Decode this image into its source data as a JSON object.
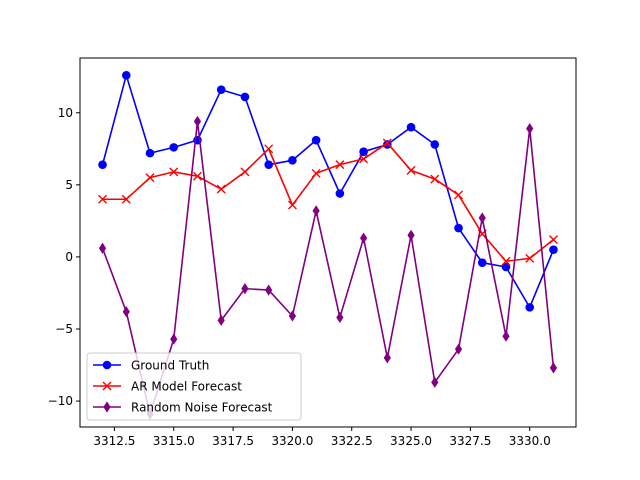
{
  "chart_data": {
    "type": "line",
    "title": "",
    "xlabel": "",
    "ylabel": "",
    "xlim": [
      3311.05,
      3331.95
    ],
    "ylim": [
      -11.8,
      13.8
    ],
    "x_ticks": [
      {
        "value": 3312.5,
        "label": "3312.5"
      },
      {
        "value": 3315.0,
        "label": "3315.0"
      },
      {
        "value": 3317.5,
        "label": "3317.5"
      },
      {
        "value": 3320.0,
        "label": "3320.0"
      },
      {
        "value": 3322.5,
        "label": "3322.5"
      },
      {
        "value": 3325.0,
        "label": "3325.0"
      },
      {
        "value": 3327.5,
        "label": "3327.5"
      },
      {
        "value": 3330.0,
        "label": "3330.0"
      }
    ],
    "y_ticks": [
      {
        "value": -10,
        "label": "−10"
      },
      {
        "value": -5,
        "label": "−5"
      },
      {
        "value": 0,
        "label": "0"
      },
      {
        "value": 5,
        "label": "5"
      },
      {
        "value": 10,
        "label": "10"
      }
    ],
    "grid": false,
    "legend_position": "lower-left",
    "x": [
      3312,
      3313,
      3314,
      3315,
      3316,
      3317,
      3318,
      3319,
      3320,
      3321,
      3322,
      3323,
      3324,
      3325,
      3326,
      3327,
      3328,
      3329,
      3330,
      3331
    ],
    "series": [
      {
        "name": "Ground Truth",
        "color": "#0000ff",
        "marker": "circle",
        "values": [
          6.4,
          12.6,
          7.2,
          7.6,
          8.1,
          11.6,
          11.1,
          6.4,
          6.7,
          8.1,
          4.4,
          7.3,
          7.8,
          9.0,
          7.8,
          2.0,
          -0.4,
          -0.7,
          -3.5,
          0.5
        ]
      },
      {
        "name": "AR Model Forecast",
        "color": "#ff0000",
        "marker": "x",
        "values": [
          4.0,
          4.0,
          5.5,
          5.9,
          5.6,
          4.7,
          5.9,
          7.5,
          3.6,
          5.8,
          6.4,
          6.8,
          7.9,
          6.0,
          5.4,
          4.3,
          1.6,
          -0.3,
          -0.1,
          1.2
        ]
      },
      {
        "name": "Random Noise Forecast",
        "color": "#800080",
        "marker": "diamond",
        "values": [
          0.6,
          -3.8,
          -10.9,
          -5.7,
          9.4,
          -4.4,
          -2.2,
          -2.3,
          -4.1,
          3.2,
          -4.2,
          1.3,
          -7.0,
          1.5,
          -8.7,
          -6.4,
          2.7,
          -5.5,
          8.9,
          -7.7
        ]
      }
    ]
  }
}
